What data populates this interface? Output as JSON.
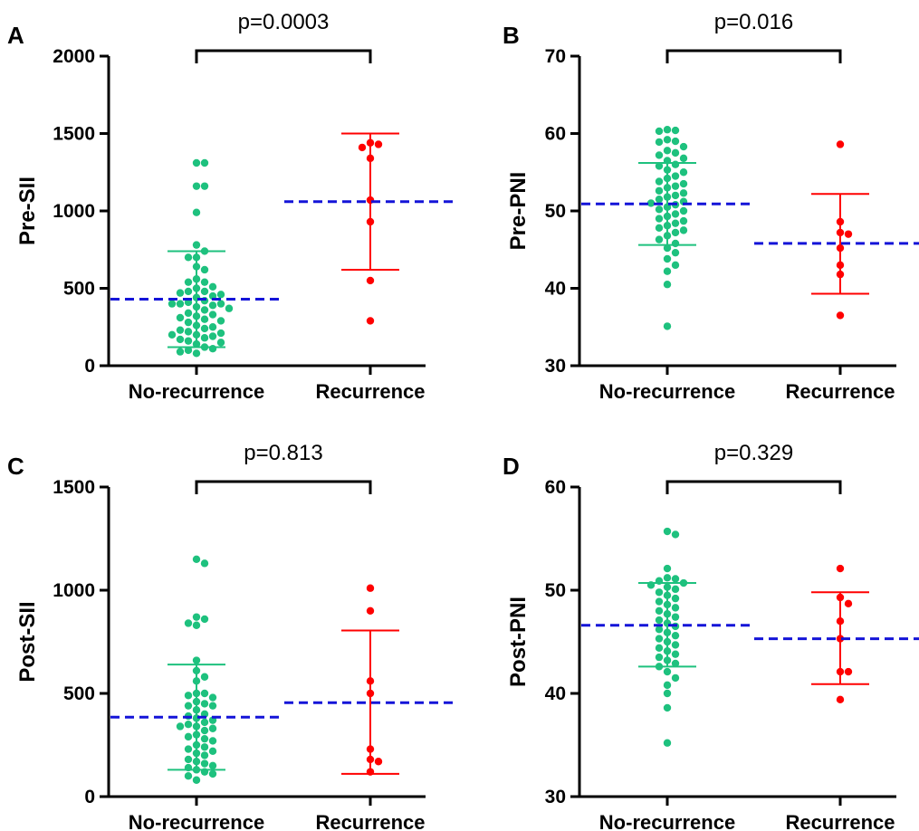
{
  "chart_data": [
    {
      "type": "scatter",
      "panel_label": "A",
      "ylabel": "Pre-SII",
      "categories": [
        "No-recurrence",
        "Recurrence"
      ],
      "ylim": [
        0,
        2000
      ],
      "yticks": [
        0,
        500,
        1000,
        1500,
        2000
      ],
      "p_value": "p=0.0003",
      "colors": {
        "No-recurrence": "#1ec17e",
        "Recurrence": "#ff0000",
        "mean_line": "#1414d8"
      },
      "series": [
        {
          "name": "No-recurrence",
          "mean": 430,
          "error_low": 120,
          "error_high": 740,
          "values": [
            1310,
            1310,
            1160,
            1160,
            990,
            780,
            740,
            700,
            700,
            640,
            620,
            560,
            540,
            540,
            510,
            500,
            480,
            480,
            470,
            460,
            450,
            440,
            420,
            410,
            400,
            400,
            400,
            390,
            380,
            370,
            360,
            340,
            330,
            320,
            310,
            300,
            290,
            280,
            260,
            250,
            240,
            230,
            220,
            210,
            200,
            200,
            190,
            180,
            170,
            160,
            150,
            140,
            120,
            110,
            100,
            90,
            80
          ]
        },
        {
          "name": "Recurrence",
          "mean": 1060,
          "error_low": 620,
          "error_high": 1500,
          "values": [
            1440,
            1430,
            1410,
            1340,
            1070,
            930,
            550,
            290
          ]
        }
      ]
    },
    {
      "type": "scatter",
      "panel_label": "B",
      "ylabel": "Pre-PNI",
      "categories": [
        "No-recurrence",
        "Recurrence"
      ],
      "ylim": [
        30,
        70
      ],
      "yticks": [
        30,
        40,
        50,
        60,
        70
      ],
      "p_value": "p=0.016",
      "colors": {
        "No-recurrence": "#1ec17e",
        "Recurrence": "#ff0000",
        "mean_line": "#1414d8"
      },
      "series": [
        {
          "name": "No-recurrence",
          "mean": 50.9,
          "error_low": 45.6,
          "error_high": 56.2,
          "values": [
            60.5,
            60.4,
            60.3,
            59.2,
            59.0,
            58.9,
            58.3,
            57.8,
            57.5,
            57.2,
            56.8,
            56.5,
            56.0,
            55.8,
            55.3,
            55.0,
            54.5,
            54.2,
            53.8,
            53.5,
            53.2,
            53.0,
            52.6,
            52.3,
            52.0,
            51.8,
            51.5,
            51.2,
            51.0,
            50.8,
            50.5,
            50.2,
            50.0,
            49.6,
            49.3,
            49.0,
            48.7,
            48.4,
            48.1,
            47.8,
            47.5,
            47.2,
            46.8,
            46.3,
            45.8,
            45.2,
            44.6,
            43.8,
            43.0,
            42.2,
            40.5,
            35.1
          ]
        },
        {
          "name": "Recurrence",
          "mean": 45.8,
          "error_low": 39.3,
          "error_high": 52.2,
          "values": [
            58.6,
            48.6,
            47.2,
            47.0,
            45.2,
            43.0,
            41.8,
            36.5
          ]
        }
      ]
    },
    {
      "type": "scatter",
      "panel_label": "C",
      "ylabel": "Post-SII",
      "categories": [
        "No-recurrence",
        "Recurrence"
      ],
      "ylim": [
        0,
        1500
      ],
      "yticks": [
        0,
        500,
        1000,
        1500
      ],
      "p_value": "p=0.813",
      "colors": {
        "No-recurrence": "#1ec17e",
        "Recurrence": "#ff0000",
        "mean_line": "#1414d8"
      },
      "series": [
        {
          "name": "No-recurrence",
          "mean": 385,
          "error_low": 130,
          "error_high": 640,
          "values": [
            1150,
            1130,
            870,
            860,
            840,
            830,
            660,
            610,
            580,
            560,
            500,
            500,
            490,
            480,
            460,
            450,
            440,
            440,
            420,
            400,
            390,
            380,
            370,
            360,
            350,
            340,
            340,
            330,
            320,
            300,
            290,
            280,
            270,
            250,
            240,
            230,
            220,
            210,
            200,
            180,
            170,
            160,
            150,
            140,
            130,
            120,
            110,
            100,
            80
          ]
        },
        {
          "name": "Recurrence",
          "mean": 455,
          "error_low": 110,
          "error_high": 805,
          "values": [
            1010,
            900,
            560,
            500,
            230,
            180,
            170,
            120
          ]
        }
      ]
    },
    {
      "type": "scatter",
      "panel_label": "D",
      "ylabel": "Post-PNI",
      "categories": [
        "No-recurrence",
        "Recurrence"
      ],
      "ylim": [
        30,
        60
      ],
      "yticks": [
        30,
        40,
        50,
        60
      ],
      "p_value": "p=0.329",
      "colors": {
        "No-recurrence": "#1ec17e",
        "Recurrence": "#ff0000",
        "mean_line": "#1414d8"
      },
      "series": [
        {
          "name": "No-recurrence",
          "mean": 46.6,
          "error_low": 42.6,
          "error_high": 50.7,
          "values": [
            55.7,
            55.4,
            52.1,
            51.2,
            51.1,
            50.9,
            50.7,
            50.5,
            50.3,
            50.1,
            49.8,
            49.5,
            49.2,
            48.9,
            48.6,
            48.3,
            48.0,
            47.7,
            47.4,
            47.1,
            46.8,
            46.5,
            46.2,
            45.9,
            45.6,
            45.3,
            45.0,
            44.7,
            44.4,
            44.1,
            43.8,
            43.5,
            43.2,
            42.9,
            42.6,
            42.1,
            41.5,
            40.8,
            40.0,
            38.6,
            35.2
          ]
        },
        {
          "name": "Recurrence",
          "mean": 45.3,
          "error_low": 40.9,
          "error_high": 49.8,
          "values": [
            52.1,
            49.3,
            48.7,
            47.0,
            45.3,
            42.1,
            42.1,
            39.4
          ]
        }
      ]
    }
  ]
}
